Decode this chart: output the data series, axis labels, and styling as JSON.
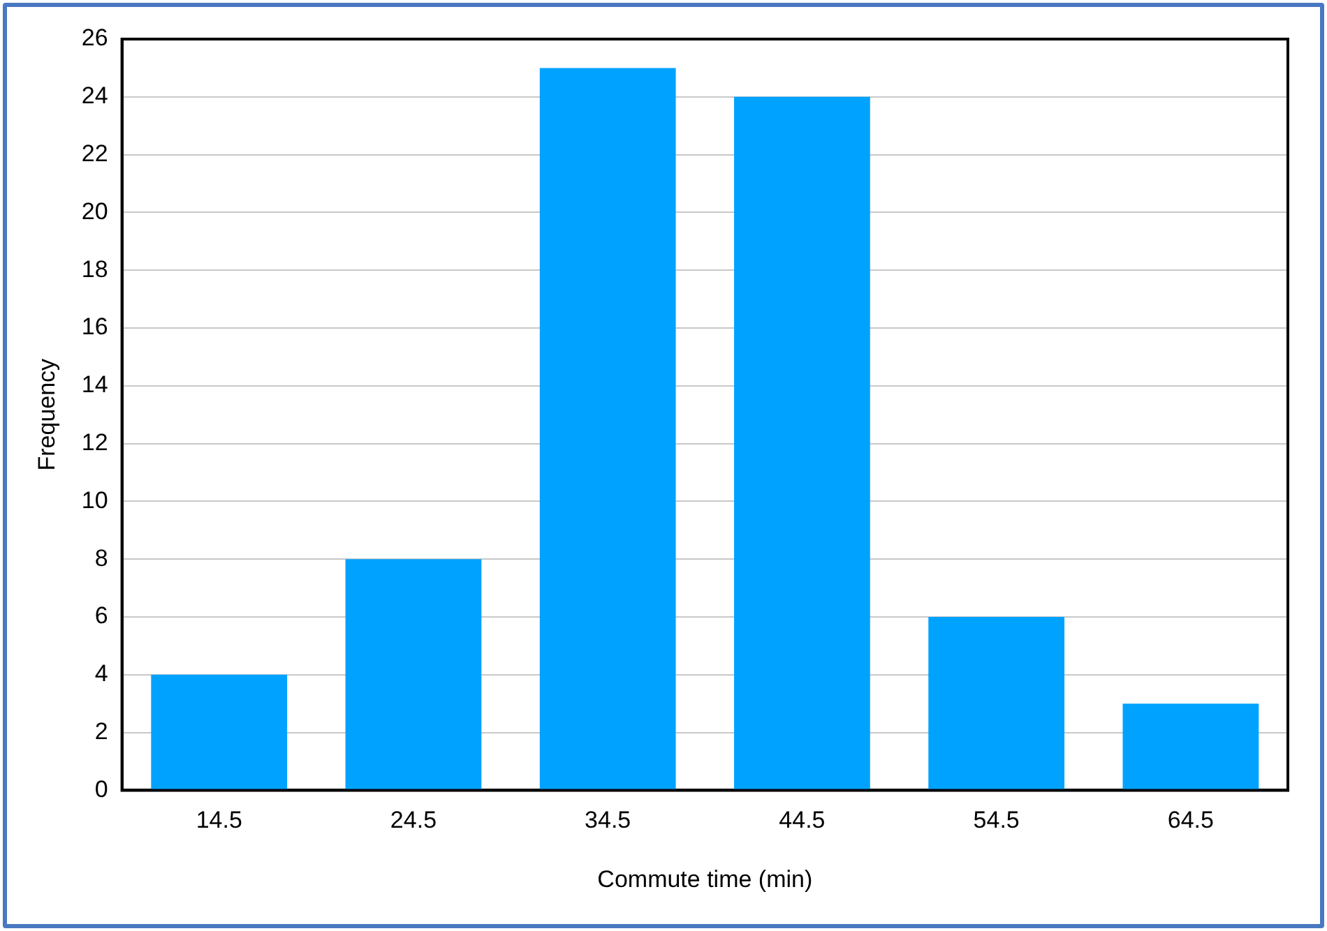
{
  "chart_data": {
    "type": "bar",
    "xlabel": "Commute time (min)",
    "ylabel": "Frequency",
    "categories": [
      "14.5",
      "24.5",
      "34.5",
      "44.5",
      "54.5",
      "64.5"
    ],
    "values": [
      4,
      8,
      25,
      24,
      6,
      3
    ],
    "color": "#00a2ff",
    "ylim": [
      0,
      26
    ],
    "yticks": [
      0,
      2,
      4,
      6,
      8,
      10,
      12,
      14,
      16,
      18,
      20,
      22,
      24,
      26
    ],
    "grid": "y",
    "legend": false
  }
}
